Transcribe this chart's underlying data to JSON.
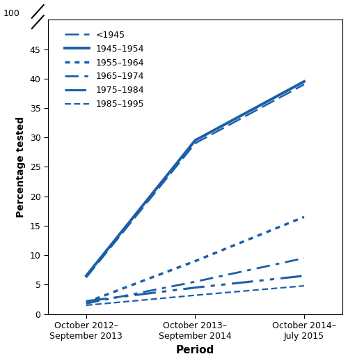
{
  "x_positions": [
    0,
    1,
    2
  ],
  "x_labels": [
    "October 2012–\nSeptember 2013",
    "October 2013–\nSeptember 2014",
    "October 2014–\nJuly 2015"
  ],
  "xlabel": "Period",
  "ylabel": "Percentage tested",
  "color": "#1a5fa8",
  "series": [
    {
      "label": "<1945",
      "values": [
        6.2,
        29.0,
        39.0
      ],
      "dashes": [
        8,
        3
      ],
      "lw": 1.8
    },
    {
      "label": "1945–1954",
      "values": [
        6.5,
        29.5,
        39.5
      ],
      "dashes": [],
      "lw": 2.8
    },
    {
      "label": "1955–1964",
      "values": [
        2.0,
        9.0,
        16.5
      ],
      "dashes": [
        2,
        2
      ],
      "lw": 2.5
    },
    {
      "label": "1965–1974",
      "values": [
        1.8,
        5.5,
        9.5
      ],
      "dashes": [
        7,
        3,
        2,
        3
      ],
      "lw": 2.0
    },
    {
      "label": "1975–1984",
      "values": [
        2.2,
        4.5,
        6.5
      ],
      "dashes": [
        10,
        3,
        2,
        3,
        2,
        3
      ],
      "lw": 2.2
    },
    {
      "label": "1985–1995",
      "values": [
        1.5,
        3.2,
        4.8
      ],
      "dashes": [
        4,
        2,
        4,
        2
      ],
      "lw": 1.6
    }
  ],
  "yticks": [
    0,
    5,
    10,
    15,
    20,
    25,
    30,
    35,
    40,
    45
  ],
  "ylim": [
    0,
    50
  ],
  "y100_label": "100"
}
